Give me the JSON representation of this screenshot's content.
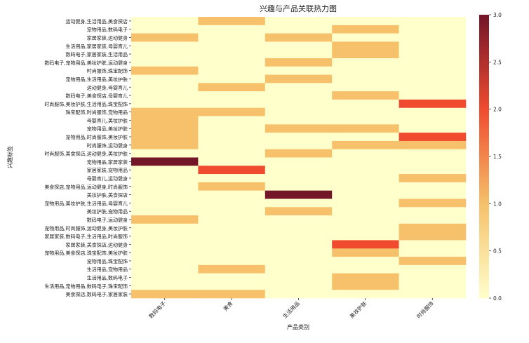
{
  "chart_data": {
    "type": "heatmap",
    "title": "兴趣与产品关联热力图",
    "xlabel": "产品类别",
    "ylabel": "兴趣标签",
    "columns": [
      "数码电子",
      "美食",
      "生活用品",
      "美妆护肤",
      "时尚服饰"
    ],
    "rows": [
      "运动健身,生活用品,美食探店",
      "宠物用品,数码电子",
      "家居家装,运动健身",
      "生活用品,家居家装,母婴育儿",
      "数码电子,家居家装,生活用品",
      "数码电子,宠物用品,美妆护肤,运动健身",
      "时尚服饰,珠宝配饰",
      "宠物用品,生活用品,美妆护肤",
      "运动健身,母婴育儿",
      "数码电子,美食探店,母婴育儿",
      "时尚服饰,美妆护肤,生活用品,珠宝配饰",
      "珠宝配饰,时尚服饰,宠物用品",
      "母婴育儿,美妆护肤",
      "宠物用品,美妆护肤",
      "宠物用品,时尚服饰,美妆护肤",
      "时尚服饰,运动健身",
      "时尚服饰,美食探店,运动健身,美妆护肤",
      "宠物用品,家居家装",
      "家居家装,宠物用品",
      "母婴育儿,运动健身",
      "美食探店,宠物用品,运动健身,时尚服饰",
      "美妆护肤,美食探店",
      "宠物用品,美妆护肤,生活用品,母婴育儿",
      "美妆护肤,宠物用品",
      "数码电子,运动健身",
      "宠物用品,时尚服饰,运动健身,美妆护肤",
      "家居家装,数码电子,生活用品,时尚服饰",
      "家居家装,美食探店,运动健身",
      "宠物用品,美食探店,珠宝配饰,美妆护肤",
      "宠物用品,珠宝配饰",
      "生活用品,宠物用品",
      "生活用品,数码电子",
      "生活用品,宠物用品,数码电子,珠宝配饰",
      "美食探店,数码电子,家居家装"
    ],
    "values": [
      [
        0,
        1,
        0,
        0,
        0
      ],
      [
        0,
        0,
        0,
        1,
        0
      ],
      [
        1,
        0,
        1,
        0,
        0
      ],
      [
        0,
        0,
        0,
        1,
        0
      ],
      [
        0,
        0,
        0,
        1,
        0
      ],
      [
        0,
        0,
        1,
        0,
        0
      ],
      [
        1,
        0,
        0,
        0,
        0
      ],
      [
        0,
        0,
        1,
        0,
        0
      ],
      [
        0,
        1,
        0,
        0,
        0
      ],
      [
        0,
        0,
        0,
        1,
        0
      ],
      [
        0,
        0,
        0,
        0,
        2
      ],
      [
        1,
        1,
        0,
        0,
        0
      ],
      [
        1,
        0,
        0,
        0,
        0
      ],
      [
        1,
        0,
        1,
        1,
        0
      ],
      [
        1,
        0,
        0,
        0,
        2
      ],
      [
        1,
        0,
        0,
        1,
        1
      ],
      [
        0,
        0,
        1,
        0,
        0
      ],
      [
        3,
        0,
        0,
        0,
        0
      ],
      [
        0,
        2,
        0,
        0,
        0
      ],
      [
        0,
        0,
        0,
        0,
        1
      ],
      [
        0,
        1,
        0,
        0,
        0
      ],
      [
        0,
        0,
        3,
        0,
        0
      ],
      [
        0,
        0,
        0,
        0,
        1
      ],
      [
        0,
        0,
        1,
        0,
        0
      ],
      [
        1,
        0,
        0,
        0,
        0
      ],
      [
        0,
        0,
        0,
        0,
        1
      ],
      [
        0,
        0,
        0,
        0,
        1
      ],
      [
        0,
        0,
        0,
        2,
        0
      ],
      [
        0,
        0,
        0,
        1,
        0
      ],
      [
        0,
        0,
        0,
        0,
        1
      ],
      [
        0,
        1,
        0,
        0,
        0
      ],
      [
        0,
        0,
        0,
        1,
        0
      ],
      [
        0,
        0,
        0,
        1,
        0
      ],
      [
        1,
        1,
        0,
        0,
        0
      ]
    ],
    "vmin": 0,
    "vmax": 3,
    "colorbar_ticks": [
      "0.0",
      "0.5",
      "1.0",
      "1.5",
      "2.0",
      "2.5",
      "3.0"
    ],
    "colormap": [
      "#ffffcc",
      "#f6c16a",
      "#f04b2f",
      "#731628"
    ]
  }
}
